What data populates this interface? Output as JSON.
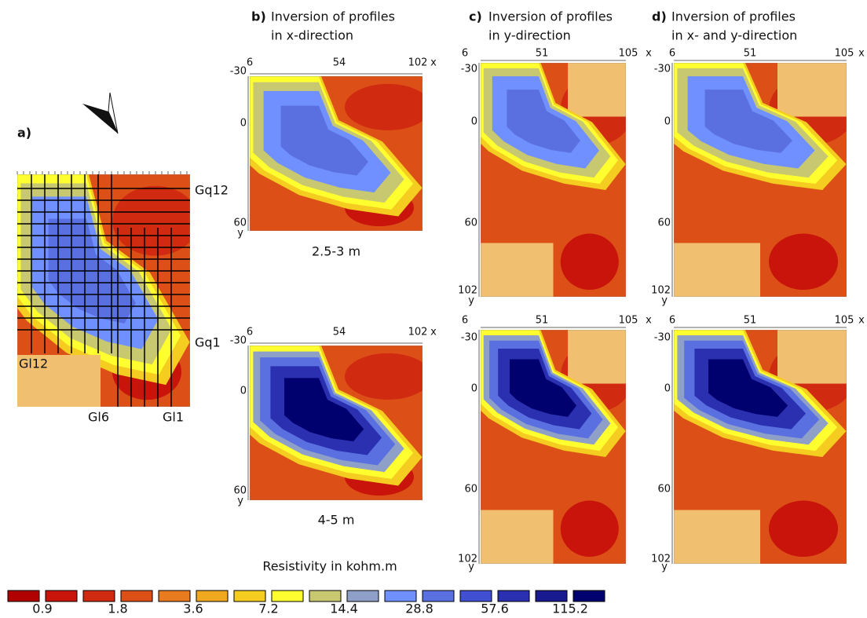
{
  "panel_a": {
    "label": "a)",
    "profiles": [
      "Gq12",
      "Gq1",
      "Gl12",
      "Gl6",
      "Gl1"
    ]
  },
  "columns": [
    {
      "label": "b)",
      "title": [
        "Inversion of profiles",
        "in x-direction"
      ],
      "x_ticks": [
        "6",
        "54",
        "102"
      ],
      "x_axis": "x",
      "y_ticks": [
        "-30",
        "0",
        "60"
      ],
      "y_axis": "y"
    },
    {
      "label": "c)",
      "title": [
        "Inversion of profiles",
        "in y-direction"
      ],
      "x_ticks": [
        "6",
        "51",
        "105"
      ],
      "x_axis": "x",
      "y_ticks": [
        "-30",
        "0",
        "60",
        "102"
      ],
      "y_axis": "y"
    },
    {
      "label": "d)",
      "title": [
        "Inversion of profiles",
        "in x- and y-direction"
      ],
      "x_ticks": [
        "6",
        "51",
        "105"
      ],
      "x_axis": "x",
      "y_ticks": [
        "-30",
        "0",
        "60",
        "102"
      ],
      "y_axis": "y"
    }
  ],
  "depths": [
    "2.5-3 m",
    "4-5 m"
  ],
  "legend": {
    "title": "Resistivity in kohm.m",
    "colors": [
      "#b00000",
      "#c8140a",
      "#d02a10",
      "#dc5018",
      "#e87a20",
      "#f0a820",
      "#f5cc20",
      "#ffff30",
      "#c8c870",
      "#8fa0c8",
      "#7090ff",
      "#5a70e0",
      "#4050d0",
      "#2a30b0",
      "#1a1a90",
      "#00006e"
    ],
    "labels": [
      "0.9",
      "1.8",
      "3.6",
      "7.2",
      "14.4",
      "28.8",
      "57.6",
      "115.2"
    ]
  }
}
